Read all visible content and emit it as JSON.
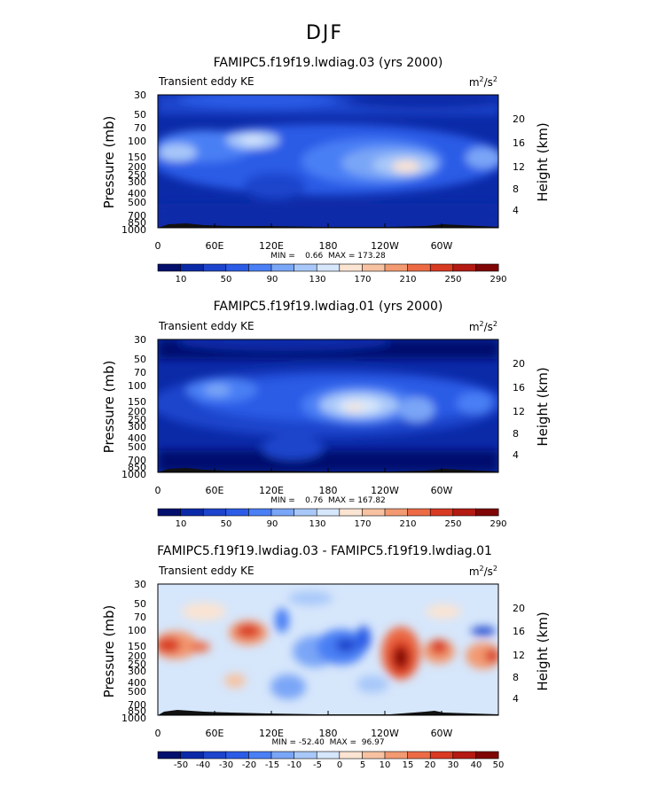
{
  "page_title": "DJF",
  "chart_data": [
    {
      "type": "heatmap",
      "title": "FAMIPC5.f19f19.lwdiag.03 (yrs 2000)",
      "left_label": "Transient eddy KE",
      "unit_base": "m",
      "unit_exp1": "2",
      "unit_mid": "/s",
      "unit_exp2": "2",
      "ylabel": "Pressure (mb)",
      "y2label": "Height (km)",
      "y_ticks": [
        "30",
        "50",
        "70",
        "100",
        "150",
        "200",
        "250",
        "300",
        "400",
        "500",
        "700",
        "850",
        "1000"
      ],
      "y2_ticks": [
        "20",
        "16",
        "12",
        "8",
        "4"
      ],
      "x_ticks": [
        "0",
        "60E",
        "120E",
        "180",
        "120W",
        "60W"
      ],
      "stats_text": "MIN =    0.66  MAX = 173.28",
      "colorbar_labels": [
        "10",
        "50",
        "90",
        "130",
        "170",
        "210",
        "250",
        "290"
      ],
      "colors": [
        "#03106e",
        "#0b2aa8",
        "#1d44cc",
        "#2c5ce6",
        "#4a7ff5",
        "#7aa6f7",
        "#a8c8f9",
        "#d6e6fb",
        "#fbe4d2",
        "#f7c2a2",
        "#f29a72",
        "#ec6b45",
        "#d93a22",
        "#b41a12",
        "#800505"
      ],
      "levels": [
        10,
        30,
        50,
        70,
        90,
        110,
        130,
        150,
        170,
        190,
        210,
        230,
        250,
        270,
        290
      ]
    },
    {
      "type": "heatmap",
      "title": "FAMIPC5.f19f19.lwdiag.01 (yrs 2000)",
      "left_label": "Transient eddy KE",
      "unit_base": "m",
      "unit_exp1": "2",
      "unit_mid": "/s",
      "unit_exp2": "2",
      "ylabel": "Pressure (mb)",
      "y2label": "Height (km)",
      "y_ticks": [
        "30",
        "50",
        "70",
        "100",
        "150",
        "200",
        "250",
        "300",
        "400",
        "500",
        "700",
        "850",
        "1000"
      ],
      "y2_ticks": [
        "20",
        "16",
        "12",
        "8",
        "4"
      ],
      "x_ticks": [
        "0",
        "60E",
        "120E",
        "180",
        "120W",
        "60W"
      ],
      "stats_text": "MIN =    0.76  MAX = 167.82",
      "colorbar_labels": [
        "10",
        "50",
        "90",
        "130",
        "170",
        "210",
        "250",
        "290"
      ],
      "colors": [
        "#03106e",
        "#0b2aa8",
        "#1d44cc",
        "#2c5ce6",
        "#4a7ff5",
        "#7aa6f7",
        "#a8c8f9",
        "#d6e6fb",
        "#fbe4d2",
        "#f7c2a2",
        "#f29a72",
        "#ec6b45",
        "#d93a22",
        "#b41a12",
        "#800505"
      ],
      "levels": [
        10,
        30,
        50,
        70,
        90,
        110,
        130,
        150,
        170,
        190,
        210,
        230,
        250,
        270,
        290
      ]
    },
    {
      "type": "heatmap",
      "title": "FAMIPC5.f19f19.lwdiag.03 - FAMIPC5.f19f19.lwdiag.01",
      "left_label": "Transient eddy KE",
      "unit_base": "m",
      "unit_exp1": "2",
      "unit_mid": "/s",
      "unit_exp2": "2",
      "ylabel": "Pressure (mb)",
      "y2label": "Height (km)",
      "y_ticks": [
        "30",
        "50",
        "70",
        "100",
        "150",
        "200",
        "250",
        "300",
        "400",
        "500",
        "700",
        "850",
        "1000"
      ],
      "y2_ticks": [
        "20",
        "16",
        "12",
        "8",
        "4"
      ],
      "x_ticks": [
        "0",
        "60E",
        "120E",
        "180",
        "120W",
        "60W"
      ],
      "stats_text": "MIN = -52.40  MAX =  96.97",
      "colorbar_labels": [
        "-50",
        "-40",
        "-30",
        "-20",
        "-15",
        "-10",
        "-5",
        "0",
        "5",
        "10",
        "15",
        "20",
        "30",
        "40",
        "50"
      ],
      "colors": [
        "#03106e",
        "#0b2aa8",
        "#1d44cc",
        "#2c5ce6",
        "#4a7ff5",
        "#7aa6f7",
        "#a8c8f9",
        "#d6e6fb",
        "#fbe4d2",
        "#f7c2a2",
        "#f29a72",
        "#ec6b45",
        "#d93a22",
        "#b41a12",
        "#800505"
      ],
      "levels": [
        -50,
        -40,
        -30,
        -20,
        -15,
        -10,
        -5,
        0,
        5,
        10,
        15,
        20,
        30,
        40,
        50
      ]
    }
  ]
}
